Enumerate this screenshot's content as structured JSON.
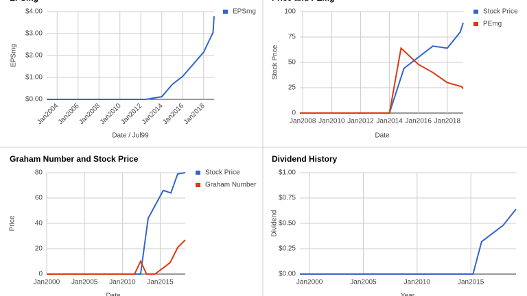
{
  "chart_data": [
    {
      "type": "line",
      "title": "EPSmg",
      "ylabel": "EPSmg",
      "xlabel": "Date / Jul99",
      "xlim": [
        2003,
        2019
      ],
      "xticks": [
        {
          "value": 2004,
          "label": "Jan2004"
        },
        {
          "value": 2006,
          "label": "Jan2006"
        },
        {
          "value": 2008,
          "label": "Jan2008"
        },
        {
          "value": 2010,
          "label": "Jan2010"
        },
        {
          "value": 2012,
          "label": "Jan2012"
        },
        {
          "value": 2014,
          "label": "Jan2014"
        },
        {
          "value": 2016,
          "label": "Jan2016"
        },
        {
          "value": 2018,
          "label": "Jan2018"
        }
      ],
      "ylim": [
        0,
        4
      ],
      "yticks": [
        {
          "value": 0,
          "label": "$0.00"
        },
        {
          "value": 1,
          "label": "$1.00"
        },
        {
          "value": 2,
          "label": "$2.00"
        },
        {
          "value": 3,
          "label": "$3.00"
        },
        {
          "value": 4,
          "label": "$4.00"
        }
      ],
      "grid": true,
      "legend": "right",
      "series": [
        {
          "name": "EPSmg",
          "color": "#3366cc",
          "x": [
            2003,
            2012.5,
            2014,
            2015,
            2016,
            2017,
            2018,
            2018.9,
            2019
          ],
          "values": [
            0,
            0,
            0.12,
            0.68,
            1.05,
            1.6,
            2.15,
            3.05,
            3.8
          ]
        }
      ]
    },
    {
      "type": "line",
      "title": "Price and PEmg",
      "ylabel": "Stock Price",
      "xlabel": "Date",
      "xlim": [
        2007.8,
        2019.1
      ],
      "xticks": [
        {
          "value": 2008,
          "label": "Jan2008"
        },
        {
          "value": 2010,
          "label": "Jan2010"
        },
        {
          "value": 2012,
          "label": "Jan2012"
        },
        {
          "value": 2014,
          "label": "Jan2014"
        },
        {
          "value": 2016,
          "label": "Jan2016"
        },
        {
          "value": 2018,
          "label": "Jan2018"
        }
      ],
      "ylim": [
        0,
        100
      ],
      "yticks": [
        0,
        25,
        50,
        75,
        100
      ],
      "grid": true,
      "legend": "right",
      "series": [
        {
          "name": "Stock Price",
          "color": "#3366cc",
          "x": [
            2007.8,
            2014,
            2015,
            2016,
            2017,
            2018,
            2018.9,
            2019.1
          ],
          "values": [
            0,
            0,
            44,
            55,
            66,
            64,
            80,
            89
          ]
        },
        {
          "name": "PEmg",
          "color": "#dc3912",
          "x": [
            2007.8,
            2014,
            2014.8,
            2016,
            2017,
            2018,
            2019,
            2019.1
          ],
          "values": [
            0,
            0,
            64,
            48,
            40,
            30,
            26,
            24
          ]
        }
      ]
    },
    {
      "type": "line",
      "title": "Graham Number and Stock Price",
      "ylabel": "Price",
      "xlabel": "Date",
      "xlim": [
        2000,
        2018.3
      ],
      "xticks": [
        {
          "value": 2000,
          "label": "Jan2000"
        },
        {
          "value": 2005,
          "label": "Jan2005"
        },
        {
          "value": 2010,
          "label": "Jan2010"
        },
        {
          "value": 2015,
          "label": "Jan2015"
        }
      ],
      "ylim": [
        0,
        80
      ],
      "yticks": [
        0,
        20,
        40,
        60,
        80
      ],
      "grid": true,
      "legend": "right",
      "series": [
        {
          "name": "Stock Price",
          "color": "#3366cc",
          "x": [
            2000,
            2012.4,
            2013.4,
            2015.4,
            2016.4,
            2017.3,
            2018.3
          ],
          "values": [
            0,
            0,
            44,
            66,
            64,
            79,
            80
          ]
        },
        {
          "name": "Graham Number",
          "color": "#dc3912",
          "x": [
            2000,
            2011.6,
            2012.4,
            2013.2,
            2014.3,
            2016.3,
            2017.3,
            2018.3
          ],
          "values": [
            0,
            0,
            10,
            0,
            0,
            9,
            21,
            27
          ]
        }
      ]
    },
    {
      "type": "line",
      "title": "Dividend History",
      "ylabel": "Dividend",
      "xlabel": "Year",
      "xlim": [
        1999.1,
        2019.2
      ],
      "xticks": [
        {
          "value": 2000,
          "label": "Jan2000"
        },
        {
          "value": 2005,
          "label": "Jan2005"
        },
        {
          "value": 2010,
          "label": "Jan2010"
        },
        {
          "value": 2015,
          "label": "Jan2015"
        }
      ],
      "ylim": [
        0,
        1
      ],
      "yticks": [
        {
          "value": 0,
          "label": "$0.00"
        },
        {
          "value": 0.25,
          "label": "$0.25"
        },
        {
          "value": 0.5,
          "label": "$0.50"
        },
        {
          "value": 0.75,
          "label": "$0.75"
        },
        {
          "value": 1,
          "label": "$1.00"
        }
      ],
      "grid": true,
      "series": [
        {
          "color": "#3366cc",
          "x": [
            1999.1,
            2015.2,
            2016,
            2018,
            2019.2
          ],
          "values": [
            0,
            0,
            0.32,
            0.48,
            0.64
          ]
        }
      ]
    }
  ]
}
